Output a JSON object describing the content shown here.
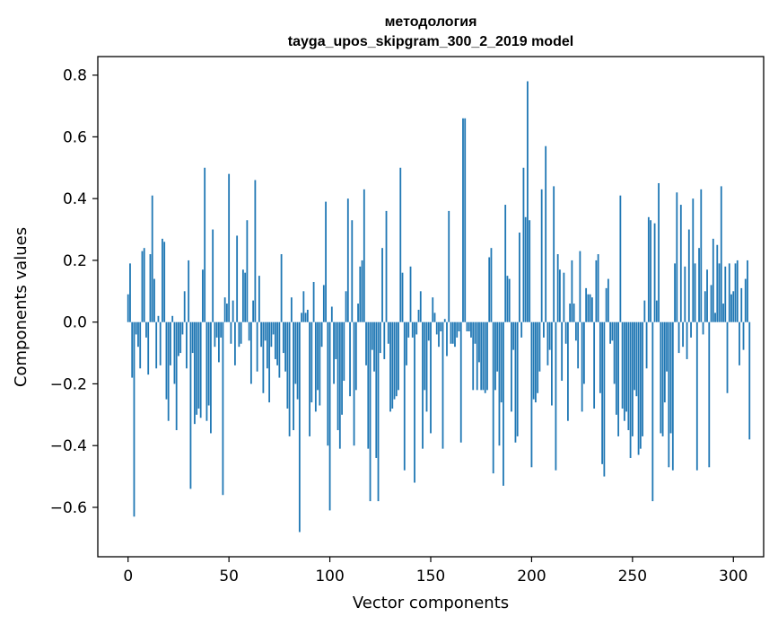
{
  "chart_data": {
    "type": "bar",
    "title_line1": "методология",
    "title_line2": "tayga_upos_skipgram_300_2_2019 model",
    "xlabel": "Vector components",
    "ylabel": "Components values",
    "xlim": [
      -15,
      315
    ],
    "ylim": [
      -0.76,
      0.86
    ],
    "xticks": [
      0,
      50,
      100,
      150,
      200,
      250,
      300
    ],
    "yticks": [
      -0.6,
      -0.4,
      -0.2,
      0.0,
      0.2,
      0.4,
      0.6,
      0.8
    ],
    "ytick_labels": [
      "−0.6",
      "−0.4",
      "−0.2",
      "0.0",
      "0.2",
      "0.4",
      "0.6",
      "0.8"
    ],
    "bar_color": "#1f77b4",
    "values": [
      0.09,
      0.19,
      -0.18,
      -0.63,
      -0.04,
      -0.08,
      -0.15,
      0.23,
      0.24,
      -0.05,
      -0.17,
      0.22,
      0.41,
      0.14,
      -0.15,
      0.02,
      -0.14,
      0.27,
      0.26,
      -0.25,
      -0.32,
      -0.14,
      0.02,
      -0.2,
      -0.35,
      -0.11,
      -0.1,
      -0.04,
      0.1,
      -0.15,
      0.2,
      -0.54,
      -0.1,
      -0.33,
      -0.3,
      -0.28,
      -0.31,
      0.17,
      0.5,
      -0.32,
      -0.27,
      -0.36,
      0.3,
      -0.08,
      -0.05,
      -0.13,
      -0.05,
      -0.56,
      0.08,
      0.06,
      0.48,
      -0.07,
      0.07,
      -0.14,
      0.28,
      -0.08,
      -0.07,
      0.17,
      0.16,
      0.33,
      -0.06,
      -0.2,
      0.07,
      0.46,
      -0.16,
      0.15,
      -0.08,
      -0.23,
      -0.06,
      -0.15,
      -0.26,
      -0.08,
      -0.04,
      -0.12,
      -0.14,
      -0.18,
      0.22,
      -0.1,
      -0.16,
      -0.28,
      -0.37,
      0.08,
      -0.35,
      -0.2,
      -0.25,
      -0.68,
      0.03,
      0.1,
      0.03,
      0.04,
      -0.37,
      -0.26,
      0.13,
      -0.29,
      -0.22,
      -0.27,
      -0.08,
      0.12,
      0.39,
      -0.4,
      -0.61,
      0.05,
      -0.2,
      -0.12,
      -0.35,
      -0.41,
      -0.3,
      -0.19,
      0.1,
      0.4,
      -0.24,
      0.33,
      -0.4,
      -0.22,
      0.06,
      0.18,
      0.2,
      0.43,
      -0.14,
      -0.41,
      -0.58,
      -0.09,
      -0.16,
      -0.44,
      -0.58,
      -0.1,
      0.24,
      -0.12,
      0.36,
      -0.07,
      -0.29,
      -0.28,
      -0.25,
      -0.24,
      -0.22,
      0.5,
      0.16,
      -0.48,
      -0.14,
      -0.05,
      0.18,
      -0.05,
      -0.52,
      -0.04,
      0.04,
      0.1,
      -0.41,
      -0.22,
      -0.29,
      -0.06,
      -0.36,
      0.08,
      0.03,
      -0.04,
      -0.08,
      -0.03,
      -0.41,
      0.01,
      -0.11,
      0.36,
      -0.07,
      -0.07,
      -0.08,
      -0.05,
      -0.03,
      -0.39,
      0.66,
      0.66,
      -0.03,
      -0.03,
      -0.05,
      -0.22,
      -0.07,
      -0.22,
      -0.13,
      -0.22,
      -0.22,
      -0.23,
      -0.22,
      0.21,
      0.24,
      -0.49,
      -0.22,
      -0.16,
      -0.4,
      -0.26,
      -0.53,
      0.38,
      0.15,
      0.14,
      -0.29,
      -0.09,
      -0.39,
      -0.37,
      0.29,
      -0.05,
      0.5,
      0.34,
      0.78,
      0.33,
      -0.47,
      -0.25,
      -0.26,
      -0.23,
      -0.16,
      0.43,
      -0.05,
      0.57,
      -0.14,
      -0.09,
      -0.27,
      0.44,
      -0.48,
      0.22,
      0.17,
      -0.19,
      0.16,
      -0.07,
      -0.32,
      0.06,
      0.2,
      0.06,
      -0.06,
      -0.15,
      0.23,
      -0.29,
      -0.2,
      0.11,
      0.09,
      0.09,
      0.08,
      -0.28,
      0.2,
      0.22,
      -0.23,
      -0.46,
      -0.5,
      0.11,
      0.14,
      -0.07,
      -0.06,
      -0.2,
      -0.3,
      -0.37,
      0.41,
      -0.28,
      -0.32,
      -0.29,
      -0.35,
      -0.44,
      -0.37,
      -0.22,
      -0.24,
      -0.43,
      -0.41,
      -0.37,
      0.07,
      -0.15,
      0.34,
      0.33,
      -0.58,
      0.32,
      0.07,
      0.45,
      -0.36,
      -0.37,
      -0.26,
      -0.16,
      -0.47,
      -0.36,
      -0.48,
      0.19,
      0.42,
      -0.1,
      0.38,
      -0.08,
      0.18,
      -0.12,
      0.3,
      -0.05,
      0.4,
      0.19,
      -0.48,
      0.24,
      0.43,
      -0.04,
      0.1,
      0.17,
      -0.47,
      0.12,
      0.27,
      0.03,
      0.25,
      0.19,
      0.44,
      0.06,
      0.18,
      -0.23,
      0.19,
      0.09,
      0.1,
      0.19,
      0.2,
      -0.14,
      0.11,
      -0.09,
      0.14,
      0.2,
      -0.38
    ]
  }
}
